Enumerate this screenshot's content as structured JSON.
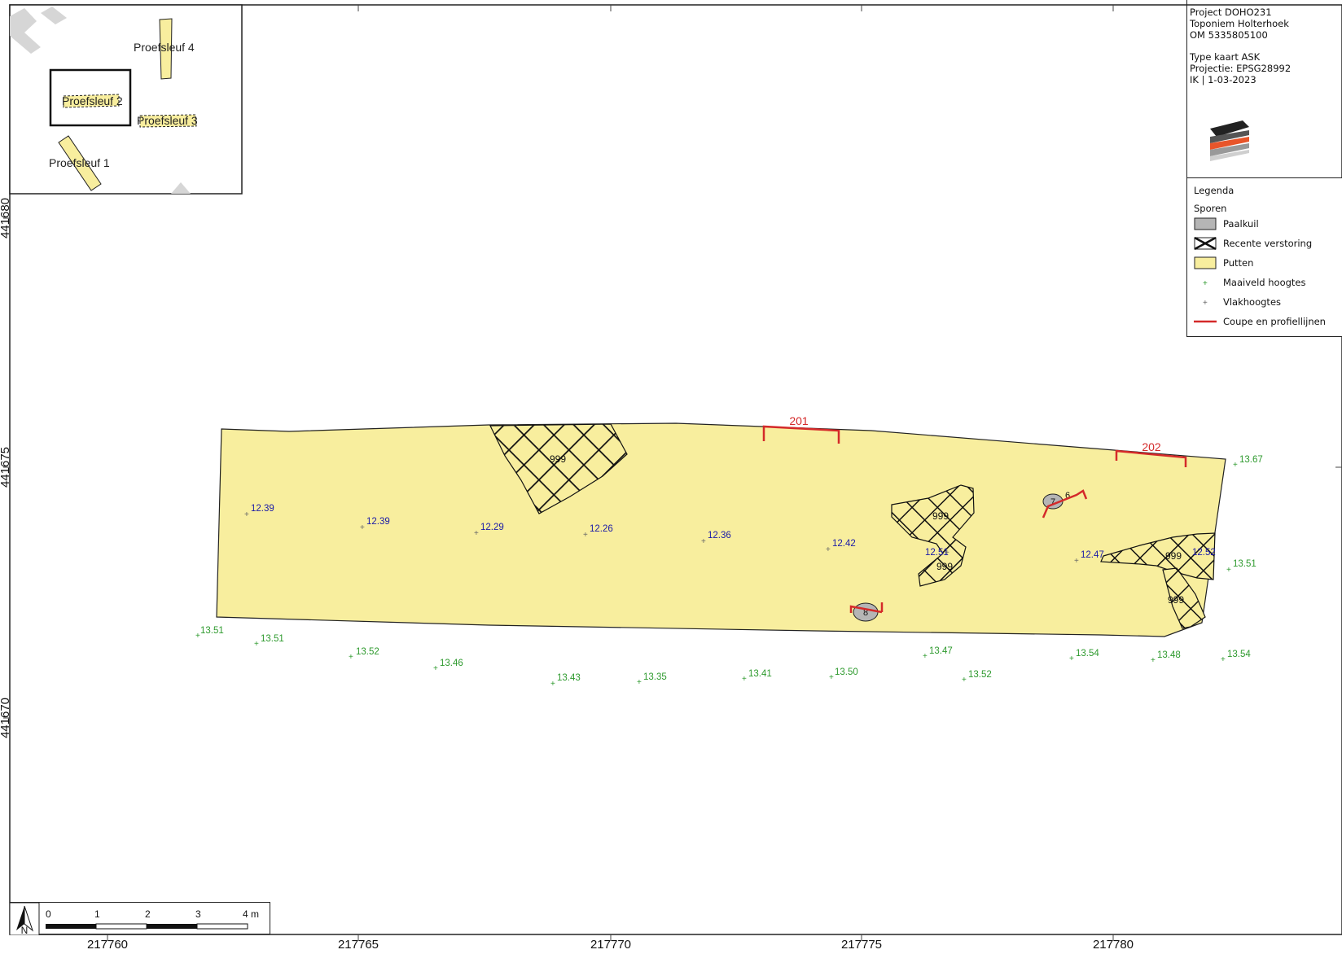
{
  "info": {
    "lines": [
      "Project DOHO231",
      "Toponiem Holterhoek",
      "OM 5335805100",
      "",
      "Type kaart ASK",
      "Projectie: EPSG28992",
      "IK | 1-03-2023"
    ]
  },
  "legend": {
    "title": "Legenda",
    "group": "Sporen",
    "items": [
      {
        "symbol": "grey-fill",
        "label": "Paalkuil"
      },
      {
        "symbol": "cross-hatch",
        "label": "Recente verstoring"
      },
      {
        "symbol": "yellow-fill",
        "label": "Putten"
      },
      {
        "symbol": "green-plus",
        "label": "Maaiveld hoogtes"
      },
      {
        "symbol": "grey-plus",
        "label": "Vlakhoogtes"
      },
      {
        "symbol": "red-line",
        "label": "Coupe en profiellijnen"
      }
    ]
  },
  "colors": {
    "putten": "#f8ee9e",
    "paalkuil": "#b5b5b5",
    "profile": "#d42a2a",
    "maaiveld": "#2e9a2e",
    "vlak": "#1a1aa8",
    "frame": "#222222"
  },
  "axes": {
    "x_ticks": [
      "217760",
      "217765",
      "217770",
      "217775",
      "217780"
    ],
    "y_ticks": [
      "441680",
      "441675",
      "441670"
    ]
  },
  "inset": {
    "trenches": [
      "Proefsleuf 4",
      "Proefsleuf 2",
      "Proefsleuf 3",
      "Proefsleuf 1"
    ]
  },
  "features": {
    "disturbance_labels": [
      "999",
      "999",
      "999",
      "999",
      "999"
    ],
    "postholes": [
      "7",
      "6",
      "8"
    ],
    "profiles": [
      "201",
      "202"
    ]
  },
  "vlak_heights": [
    "12.39",
    "12.39",
    "12.29",
    "12.26",
    "12.36",
    "12.42",
    "12.51",
    "12.47",
    "12.52"
  ],
  "maaiveld_heights": [
    "13.67",
    "13.51",
    "13.51",
    "13.51",
    "13.52",
    "13.46",
    "13.43",
    "13.35",
    "13.41",
    "13.50",
    "13.47",
    "13.52",
    "13.54",
    "13.48",
    "13.54"
  ],
  "scale": {
    "ticks": [
      "0",
      "1",
      "2",
      "3",
      "4 m"
    ],
    "north": "N"
  }
}
